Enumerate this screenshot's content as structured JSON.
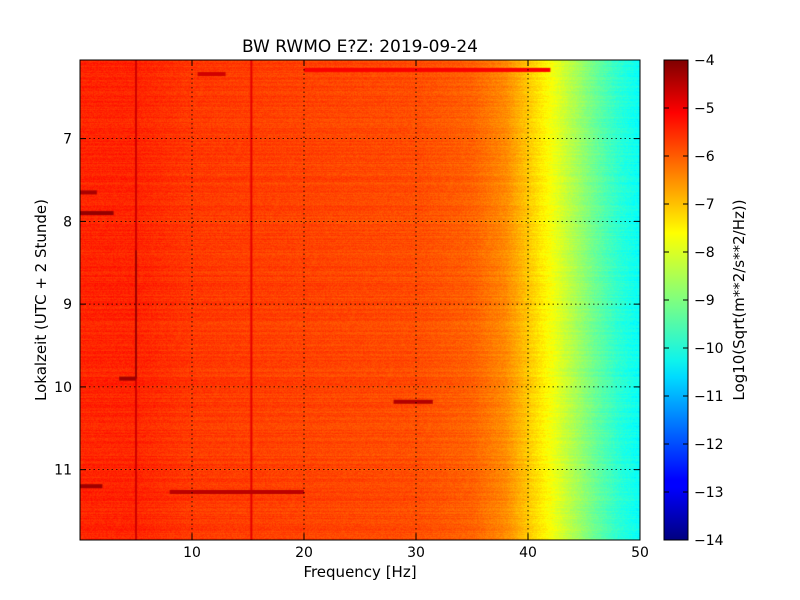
{
  "chart_data": {
    "type": "heatmap",
    "title": "BW RWMO E?Z: 2019-09-24",
    "xlabel": "Frequency [Hz]",
    "ylabel": "Lokalzeit (UTC + 2 Stunde)",
    "xlim": [
      0,
      50
    ],
    "ylim": [
      11.85,
      6.05
    ],
    "y_inverted": true,
    "xticks": [
      10,
      20,
      30,
      40,
      50
    ],
    "xtick_labels": [
      "10",
      "20",
      "30",
      "40",
      "50"
    ],
    "yticks": [
      7,
      8,
      9,
      10,
      11
    ],
    "ytick_labels": [
      "7",
      "8",
      "9",
      "10",
      "11"
    ],
    "grid": true,
    "colormap": "jet",
    "colorbar": {
      "label": "Log10(Sqrt(m**2/s**2/Hz))",
      "range": [
        -14,
        -4
      ],
      "ticks": [
        -4,
        -5,
        -6,
        -7,
        -8,
        -9,
        -10,
        -11,
        -12,
        -13,
        -14
      ],
      "tick_labels": [
        "−4",
        "−5",
        "−6",
        "−7",
        "−8",
        "−9",
        "−10",
        "−11",
        "−12",
        "−13",
        "−14"
      ]
    },
    "spectrum_profile": {
      "frequency_hz": [
        0,
        5,
        10,
        20,
        30,
        35,
        38,
        40,
        42,
        44,
        46,
        48,
        50
      ],
      "log10_psd": [
        -5.6,
        -5.6,
        -5.8,
        -5.9,
        -6.0,
        -6.2,
        -6.6,
        -7.2,
        -7.8,
        -8.5,
        -9.2,
        -9.8,
        -10.2
      ]
    },
    "features": [
      {
        "kind": "line",
        "freq_hz": 5,
        "from": 6.05,
        "to": 11.85,
        "value": -4.8
      },
      {
        "kind": "line",
        "freq_hz": 15.3,
        "from": 6.05,
        "to": 11.85,
        "value": -5.0
      },
      {
        "kind": "line",
        "freq_hz": 5,
        "from": 8.35,
        "to": 9.9,
        "value": -4.3
      },
      {
        "kind": "band",
        "time": 7.9,
        "f_from": 0,
        "f_to": 3,
        "value": -4.2
      },
      {
        "kind": "band",
        "time": 7.65,
        "f_from": 0,
        "f_to": 1.5,
        "value": -4.4
      },
      {
        "kind": "band",
        "time": 9.9,
        "f_from": 3.5,
        "f_to": 5,
        "value": -4.3
      },
      {
        "kind": "band",
        "time": 11.2,
        "f_from": 0,
        "f_to": 2,
        "value": -4.3
      },
      {
        "kind": "band",
        "time": 11.27,
        "f_from": 8,
        "f_to": 20,
        "value": -4.6
      },
      {
        "kind": "band",
        "time": 10.18,
        "f_from": 28,
        "f_to": 31.5,
        "value": -4.5
      },
      {
        "kind": "band",
        "time": 6.17,
        "f_from": 20,
        "f_to": 42,
        "value": -5.2
      },
      {
        "kind": "band",
        "time": 6.22,
        "f_from": 10.5,
        "f_to": 13,
        "value": -4.8
      }
    ]
  }
}
